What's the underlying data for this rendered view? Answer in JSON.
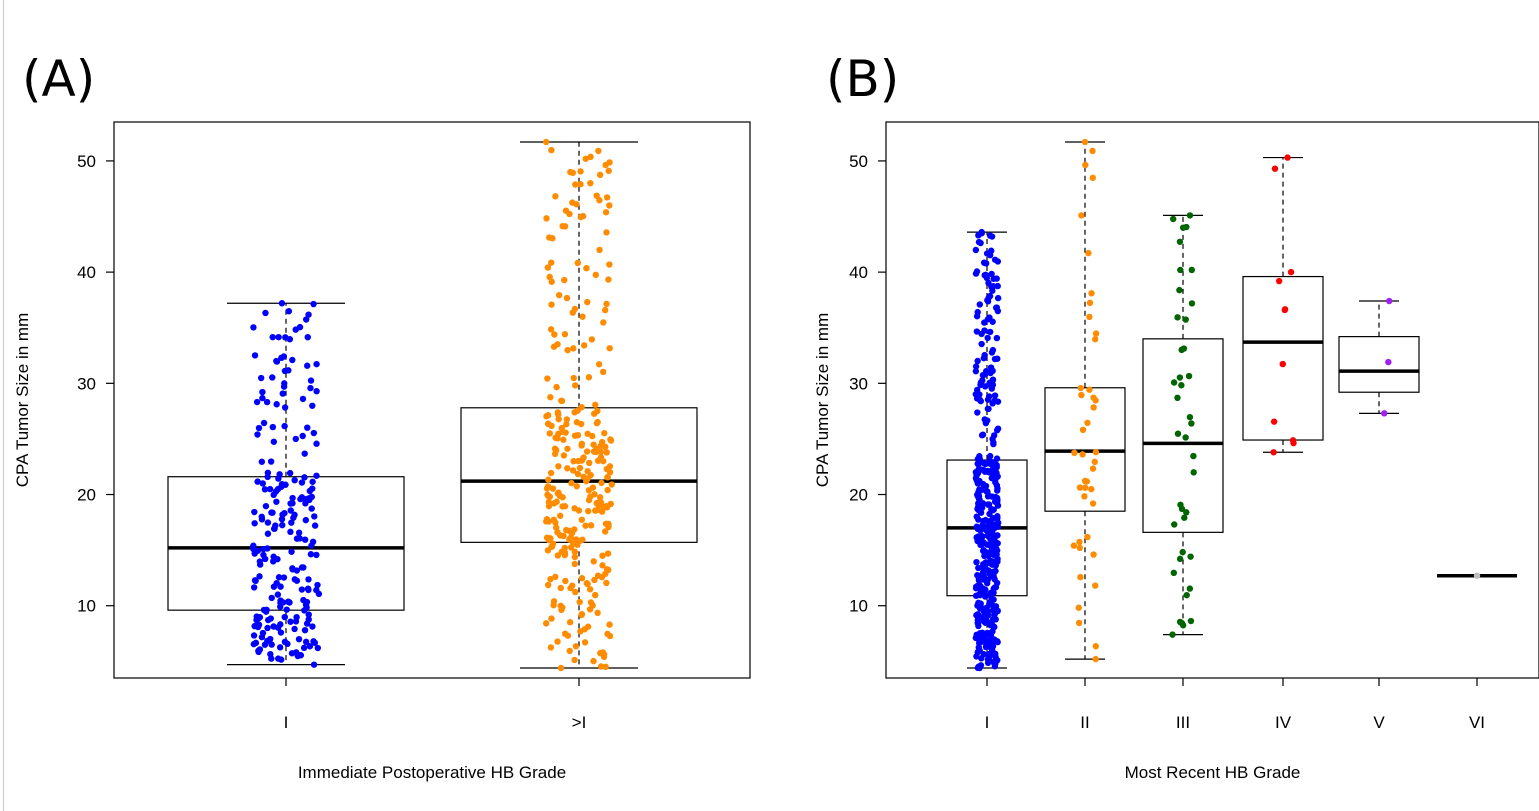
{
  "chart_data": [
    {
      "type": "box",
      "panel_label": "(A)",
      "xlabel": "Immediate Postoperative HB Grade",
      "ylabel": "CPA Tumor Size in mm",
      "categories": [
        "I",
        ">I"
      ],
      "yticks": [
        10,
        20,
        30,
        40,
        50
      ],
      "ylim": [
        3.5,
        53.5
      ],
      "boxes": [
        {
          "category": "I",
          "color": "#0000ff",
          "min": 4.7,
          "q1": 9.6,
          "median": 15.2,
          "q3": 21.6,
          "max": 37.2,
          "n": 230
        },
        {
          "category": ">I",
          "color": "#ff8c00",
          "min": 4.4,
          "q1": 15.7,
          "median": 21.2,
          "q3": 27.8,
          "max": 51.7,
          "n": 300
        }
      ]
    },
    {
      "type": "box",
      "panel_label": "(B)",
      "xlabel": "Most Recent HB Grade",
      "ylabel": "CPA Tumor Size in mm",
      "categories": [
        "I",
        "II",
        "III",
        "IV",
        "V",
        "VI"
      ],
      "yticks": [
        10,
        20,
        30,
        40,
        50
      ],
      "ylim": [
        3.5,
        53.5
      ],
      "boxes": [
        {
          "category": "I",
          "color": "#0000ff",
          "min": 4.4,
          "q1": 10.9,
          "median": 17.0,
          "q3": 23.1,
          "max": 43.6,
          "n": 420
        },
        {
          "category": "II",
          "color": "#ff8c00",
          "min": 5.2,
          "q1": 18.5,
          "median": 23.9,
          "q3": 29.6,
          "max": 51.7,
          "n": 42
        },
        {
          "category": "III",
          "color": "#006400",
          "min": 7.4,
          "q1": 16.6,
          "median": 24.6,
          "q3": 34.0,
          "max": 45.1,
          "n": 40
        },
        {
          "category": "IV",
          "color": "#ff0000",
          "min": 23.8,
          "q1": 24.9,
          "median": 33.7,
          "q3": 39.6,
          "max": 50.3,
          "n": 11
        },
        {
          "category": "V",
          "color": "#a020f0",
          "min": 27.3,
          "q1": 29.2,
          "median": 31.1,
          "q3": 34.2,
          "max": 37.4,
          "n": 3
        },
        {
          "category": "VI",
          "color": "#bebebe",
          "min": 12.7,
          "q1": 12.7,
          "median": 12.7,
          "q3": 12.7,
          "max": 12.7,
          "n": 1
        }
      ]
    }
  ]
}
